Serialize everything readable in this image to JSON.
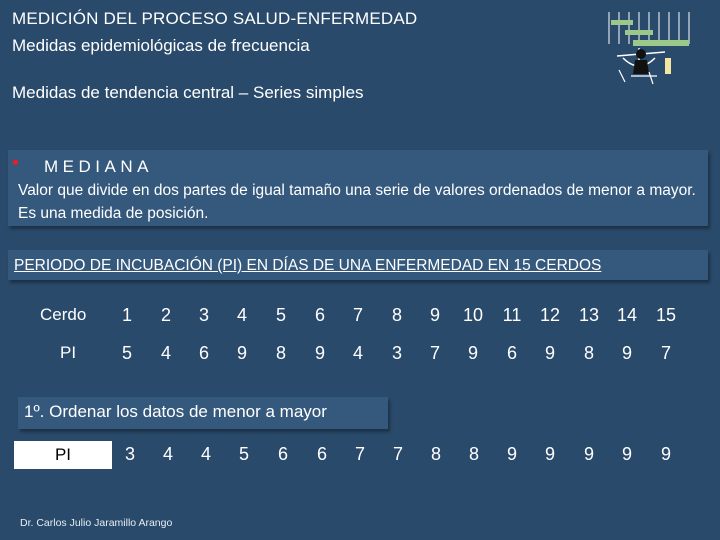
{
  "header": {
    "title": "MEDICIÓN DEL PROCESO SALUD-ENFERMEDAD",
    "subtitle": "Medidas epidemiológicas de frecuencia",
    "section": "Medidas de tendencia central – Series simples"
  },
  "definition": {
    "term": "MEDIANA",
    "text": "Valor que divide en dos partes de igual tamaño una serie de valores ordenados de menor a mayor. Es una medida de posición."
  },
  "table": {
    "title": "PERIODO DE INCUBACIÓN (PI) EN DÍAS DE UNA ENFERMEDAD EN 15 CERDOS",
    "row1_label": "Cerdo",
    "row2_label": "PI",
    "cerdos": [
      "1",
      "2",
      "3",
      "4",
      "5",
      "6",
      "7",
      "8",
      "9",
      "10",
      "11",
      "12",
      "13",
      "14",
      "15"
    ],
    "pi": [
      "5",
      "4",
      "6",
      "9",
      "8",
      "9",
      "4",
      "3",
      "7",
      "9",
      "6",
      "9",
      "8",
      "9",
      "7"
    ]
  },
  "step": {
    "text": "1º. Ordenar los datos de menor a mayor",
    "label": "PI",
    "sorted": [
      "3",
      "4",
      "4",
      "5",
      "6",
      "6",
      "7",
      "7",
      "8",
      "8",
      "9",
      "9",
      "9",
      "9",
      "9"
    ]
  },
  "footer": {
    "author": "Dr. Carlos Julio Jaramillo Arango"
  },
  "colors": {
    "background": "#2a4a6b",
    "box": "#35597c",
    "bullet": "#e02030"
  }
}
